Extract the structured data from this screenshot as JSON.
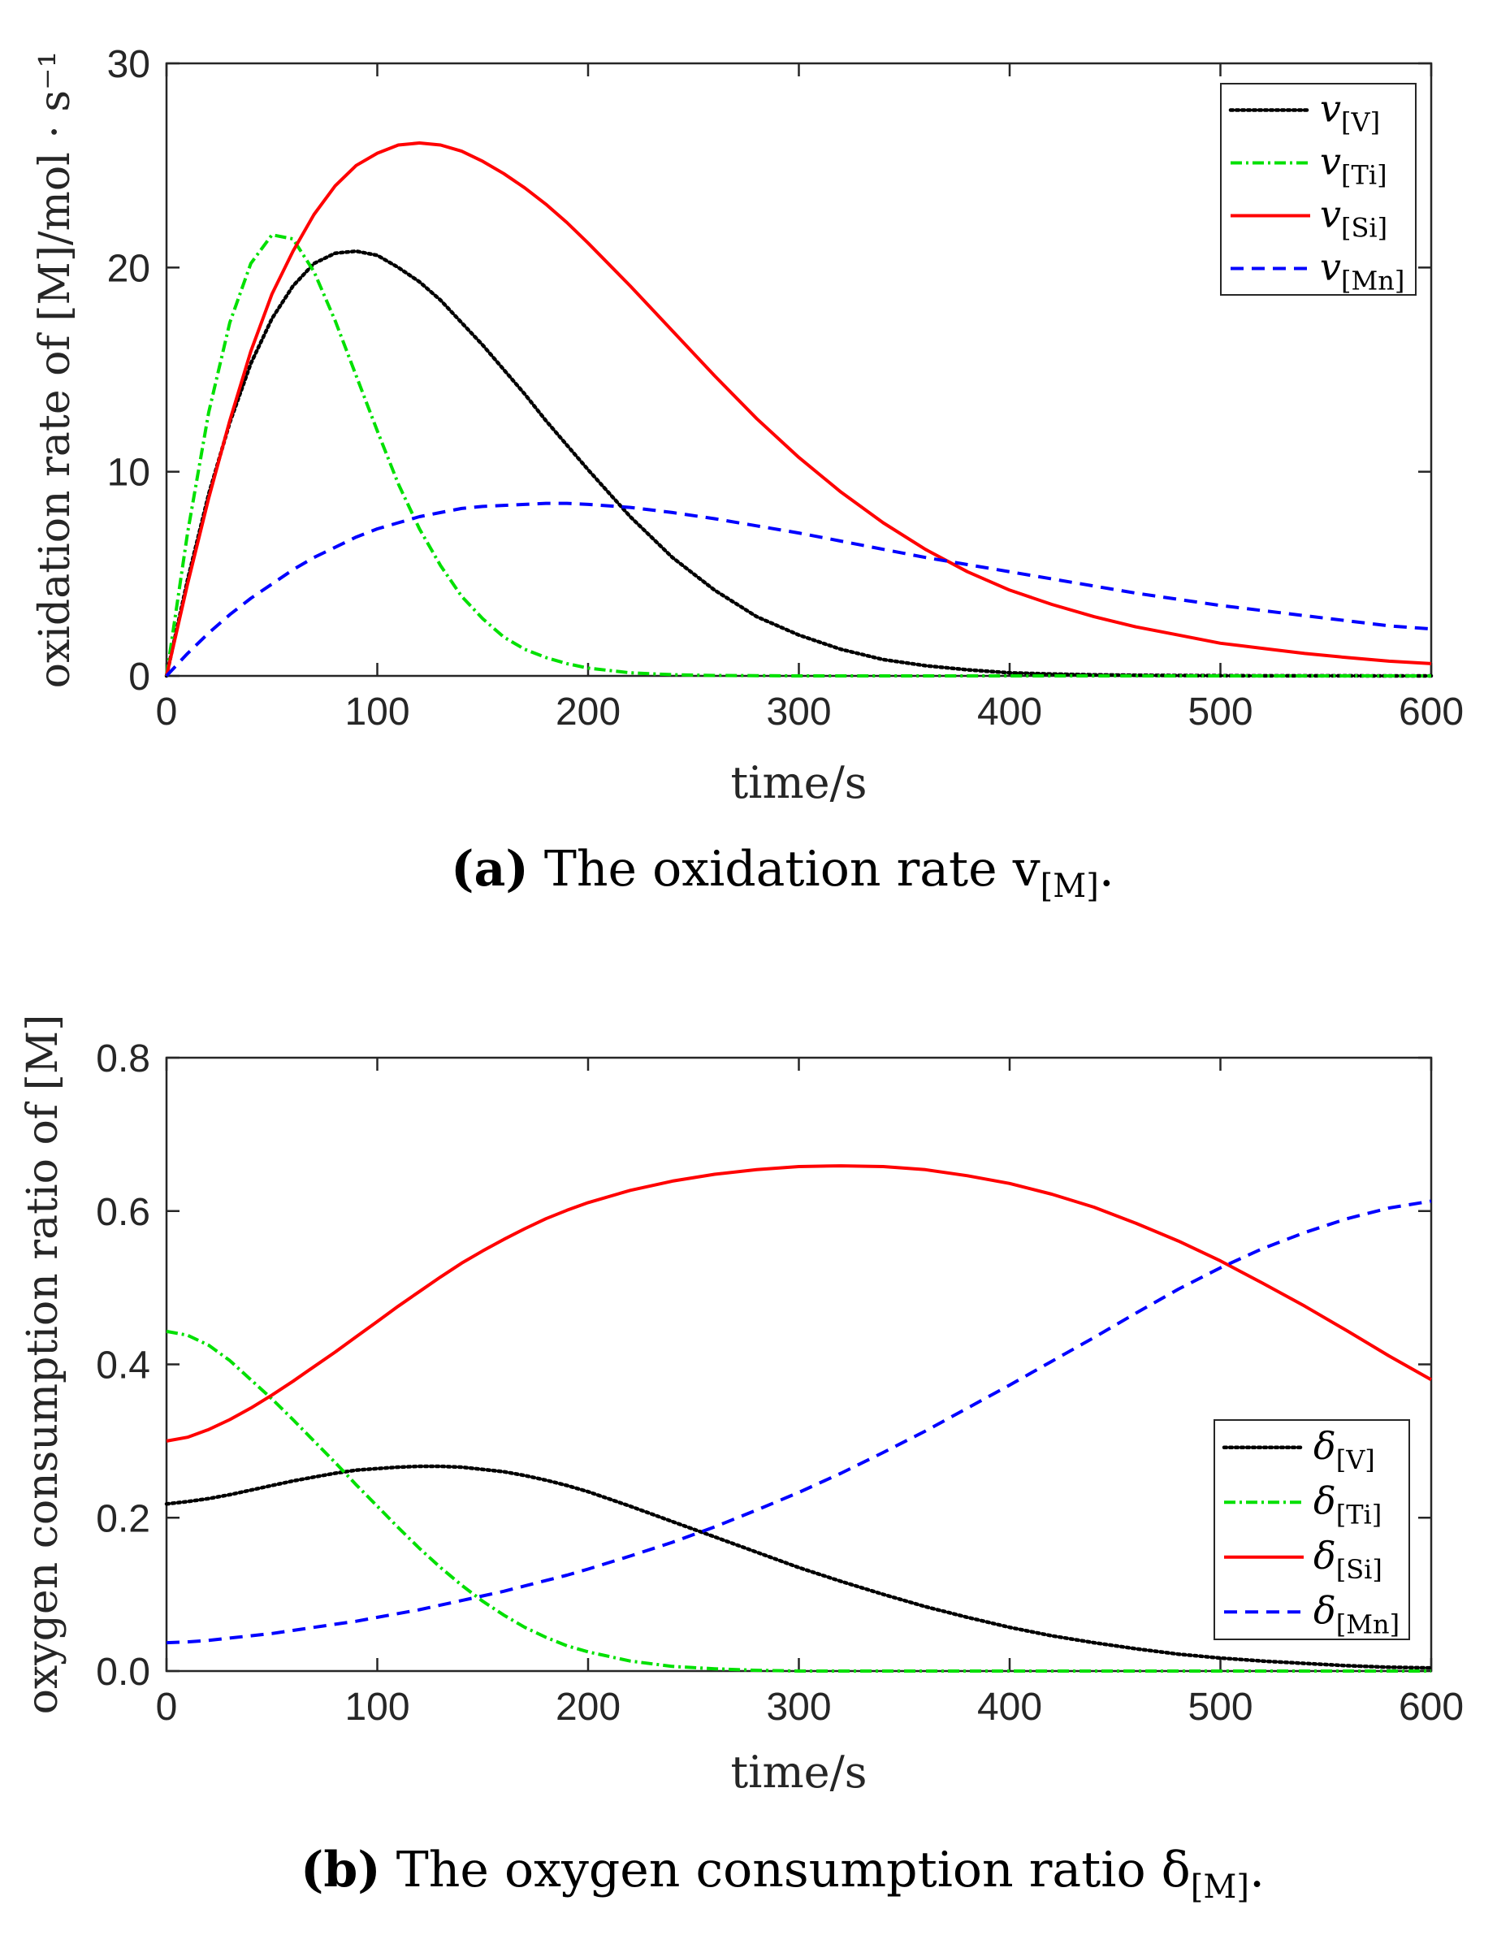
{
  "chart_data": [
    {
      "type": "line",
      "title": "",
      "xlabel": "time/s",
      "ylabel": "oxidation rate of [M]/mol · s⁻¹",
      "xlim": [
        0,
        600
      ],
      "ylim": [
        0,
        30
      ],
      "xticks": [
        0,
        100,
        200,
        300,
        400,
        500,
        600
      ],
      "yticks": [
        0,
        10,
        20,
        30
      ],
      "x": [
        0,
        10,
        20,
        30,
        40,
        50,
        60,
        70,
        80,
        90,
        100,
        110,
        120,
        130,
        140,
        150,
        160,
        170,
        180,
        190,
        200,
        220,
        240,
        260,
        280,
        300,
        320,
        340,
        360,
        380,
        400,
        420,
        440,
        460,
        480,
        500,
        520,
        540,
        560,
        580,
        600
      ],
      "legend_position": "top-right",
      "caption": {
        "label": "(a)",
        "text": "The oxidation rate v",
        "subscript": "[M]",
        "suffix": "."
      },
      "series": [
        {
          "name": "v",
          "subscript": "[V]",
          "color": "#000000",
          "style": "dotted",
          "values": [
            0,
            4.7,
            8.9,
            12.4,
            15.3,
            17.5,
            19.1,
            20.2,
            20.7,
            20.8,
            20.6,
            20.0,
            19.3,
            18.4,
            17.3,
            16.2,
            15.0,
            13.8,
            12.5,
            11.3,
            10.1,
            7.8,
            5.8,
            4.2,
            2.9,
            2.0,
            1.3,
            0.8,
            0.5,
            0.3,
            0.15,
            0.09,
            0.05,
            0.03,
            0.02,
            0.01,
            0.005,
            0.003,
            0.002,
            0.001,
            0.0
          ]
        },
        {
          "name": "v",
          "subscript": "[Ti]",
          "color": "#00e000",
          "style": "dashdot",
          "values": [
            0,
            7.0,
            12.9,
            17.3,
            20.2,
            21.6,
            21.4,
            19.8,
            17.4,
            14.7,
            12.0,
            9.4,
            7.2,
            5.4,
            3.9,
            2.8,
            1.9,
            1.3,
            0.9,
            0.6,
            0.38,
            0.15,
            0.06,
            0.02,
            0.01,
            0.0,
            0,
            0,
            0,
            0,
            0,
            0,
            0,
            0,
            0,
            0,
            0,
            0,
            0,
            0,
            0
          ]
        },
        {
          "name": "v",
          "subscript": "[Si]",
          "color": "#ff0000",
          "style": "solid",
          "values": [
            0,
            4.5,
            8.7,
            12.5,
            15.9,
            18.7,
            20.8,
            22.6,
            24.0,
            25.0,
            25.6,
            26.0,
            26.1,
            26.0,
            25.7,
            25.2,
            24.6,
            23.9,
            23.1,
            22.2,
            21.2,
            19.1,
            16.9,
            14.7,
            12.6,
            10.7,
            9.0,
            7.5,
            6.2,
            5.1,
            4.2,
            3.5,
            2.9,
            2.4,
            2.0,
            1.6,
            1.35,
            1.1,
            0.9,
            0.72,
            0.6
          ]
        },
        {
          "name": "v",
          "subscript": "[Mn]",
          "color": "#0000ff",
          "style": "dashed",
          "values": [
            0,
            1.1,
            2.1,
            3.0,
            3.8,
            4.5,
            5.2,
            5.8,
            6.3,
            6.8,
            7.2,
            7.5,
            7.8,
            8.0,
            8.2,
            8.3,
            8.35,
            8.4,
            8.45,
            8.45,
            8.4,
            8.25,
            8.0,
            7.7,
            7.35,
            7.0,
            6.6,
            6.2,
            5.8,
            5.45,
            5.1,
            4.75,
            4.4,
            4.05,
            3.75,
            3.45,
            3.2,
            2.95,
            2.7,
            2.45,
            2.3
          ]
        }
      ]
    },
    {
      "type": "line",
      "title": "",
      "xlabel": "time/s",
      "ylabel": "oxygen consumption ratio of [M]",
      "xlim": [
        0,
        600
      ],
      "ylim": [
        0,
        0.8
      ],
      "xticks": [
        0,
        100,
        200,
        300,
        400,
        500,
        600
      ],
      "yticks": [
        0,
        0.2,
        0.4,
        0.6,
        0.8
      ],
      "x": [
        0,
        10,
        20,
        30,
        40,
        50,
        60,
        70,
        80,
        90,
        100,
        110,
        120,
        130,
        140,
        150,
        160,
        170,
        180,
        190,
        200,
        220,
        240,
        260,
        280,
        300,
        320,
        340,
        360,
        380,
        400,
        420,
        440,
        460,
        480,
        500,
        520,
        540,
        560,
        580,
        600
      ],
      "legend_position": "bottom-right",
      "caption": {
        "label": "(b)",
        "text": "The oxygen consumption ratio δ",
        "subscript": "[M]",
        "suffix": "."
      },
      "series": [
        {
          "name": "δ",
          "subscript": "[V]",
          "color": "#000000",
          "style": "dotted",
          "values": [
            0.218,
            0.221,
            0.225,
            0.23,
            0.236,
            0.242,
            0.248,
            0.253,
            0.258,
            0.262,
            0.264,
            0.266,
            0.267,
            0.267,
            0.266,
            0.263,
            0.26,
            0.255,
            0.249,
            0.242,
            0.234,
            0.215,
            0.195,
            0.175,
            0.155,
            0.135,
            0.117,
            0.1,
            0.084,
            0.07,
            0.057,
            0.046,
            0.037,
            0.029,
            0.022,
            0.017,
            0.013,
            0.01,
            0.007,
            0.005,
            0.004
          ]
        },
        {
          "name": "δ",
          "subscript": "[Ti]",
          "color": "#00e000",
          "style": "dashdot",
          "values": [
            0.443,
            0.438,
            0.425,
            0.405,
            0.38,
            0.355,
            0.328,
            0.3,
            0.272,
            0.243,
            0.215,
            0.187,
            0.16,
            0.135,
            0.112,
            0.091,
            0.073,
            0.057,
            0.044,
            0.033,
            0.025,
            0.013,
            0.006,
            0.003,
            0.001,
            0.0,
            0,
            0,
            0,
            0,
            0,
            0,
            0,
            0,
            0,
            0,
            0,
            0,
            0,
            0,
            0
          ]
        },
        {
          "name": "δ",
          "subscript": "[Si]",
          "color": "#ff0000",
          "style": "solid",
          "values": [
            0.3,
            0.305,
            0.315,
            0.328,
            0.343,
            0.36,
            0.378,
            0.397,
            0.416,
            0.436,
            0.456,
            0.476,
            0.495,
            0.514,
            0.532,
            0.548,
            0.563,
            0.577,
            0.59,
            0.601,
            0.611,
            0.627,
            0.639,
            0.648,
            0.654,
            0.658,
            0.659,
            0.658,
            0.654,
            0.646,
            0.636,
            0.622,
            0.605,
            0.584,
            0.561,
            0.535,
            0.506,
            0.476,
            0.444,
            0.411,
            0.38
          ]
        },
        {
          "name": "δ",
          "subscript": "[Mn]",
          "color": "#0000ff",
          "style": "dashed",
          "values": [
            0.037,
            0.038,
            0.04,
            0.043,
            0.046,
            0.049,
            0.053,
            0.057,
            0.061,
            0.065,
            0.07,
            0.075,
            0.08,
            0.086,
            0.092,
            0.098,
            0.104,
            0.111,
            0.118,
            0.125,
            0.133,
            0.15,
            0.168,
            0.188,
            0.21,
            0.233,
            0.258,
            0.285,
            0.313,
            0.343,
            0.373,
            0.404,
            0.435,
            0.467,
            0.498,
            0.526,
            0.551,
            0.572,
            0.59,
            0.604,
            0.613
          ]
        }
      ]
    }
  ]
}
